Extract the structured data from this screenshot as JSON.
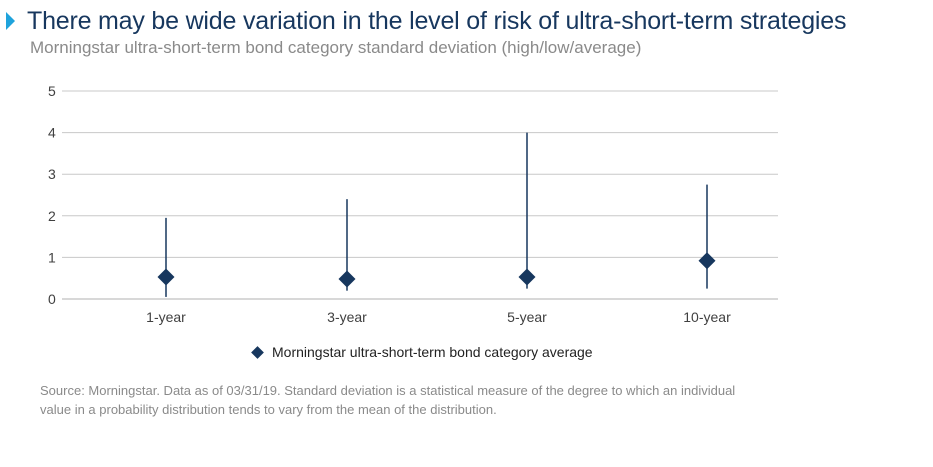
{
  "header": {
    "title": "There may be wide variation in the level of risk of ultra-short-term strategies",
    "subtitle": "Morningstar ultra-short-term bond category standard deviation (high/low/average)"
  },
  "chart_data": {
    "type": "scatter",
    "categories": [
      "1-year",
      "3-year",
      "5-year",
      "10-year"
    ],
    "series": [
      {
        "name": "Morningstar ultra-short-term bond category average",
        "values": [
          0.53,
          0.48,
          0.53,
          0.92
        ]
      }
    ],
    "high": [
      1.95,
      2.4,
      4.0,
      2.75
    ],
    "low": [
      0.05,
      0.2,
      0.25,
      0.25
    ],
    "ylim": [
      0,
      5
    ],
    "yticks": [
      0,
      1,
      2,
      3,
      4,
      5
    ],
    "grid": true,
    "legend": "bottom-center",
    "colors": {
      "marker": "#17375e",
      "grid": "#c8c8c8",
      "accent": "#1fa3dc"
    }
  },
  "legend": {
    "label": "Morningstar ultra-short-term bond category average"
  },
  "footer": {
    "source": "Source: Morningstar. Data as of 03/31/19. Standard deviation is a statistical measure of the degree to which an individual value in a probability distribution tends to vary from the mean of the distribution."
  }
}
